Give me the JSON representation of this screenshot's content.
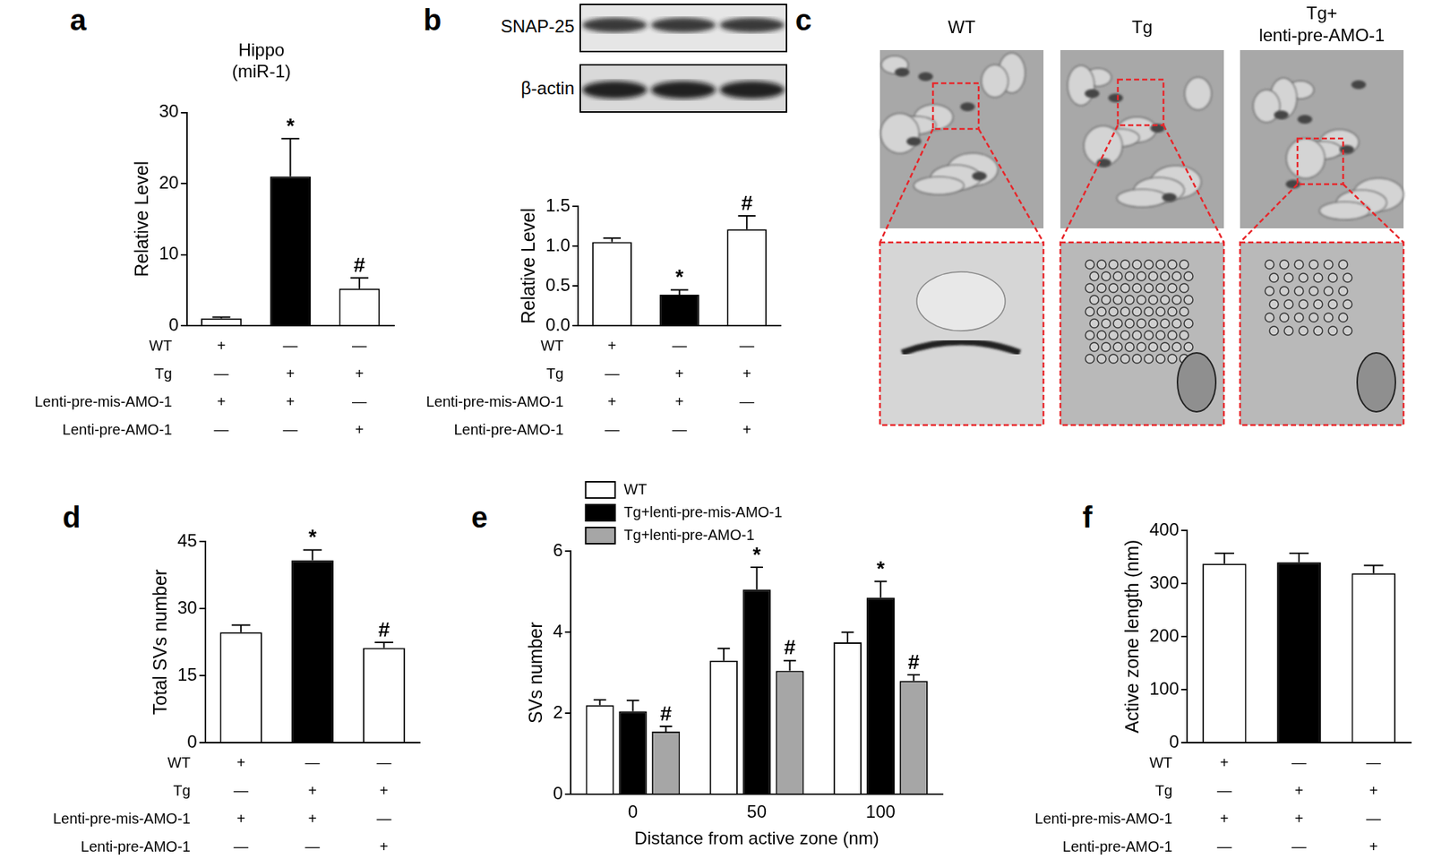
{
  "chart_data": [
    {
      "panel": "a",
      "type": "bar",
      "title": [
        "Hippo",
        "(miR-1)"
      ],
      "ylabel": "Relative Level",
      "values": [
        1.0,
        21.0,
        5.2
      ],
      "errors": [
        0.2,
        5.3,
        1.5
      ],
      "colors": [
        "#ffffff",
        "#000000",
        "#ffffff"
      ],
      "annotations": [
        null,
        "*",
        "#"
      ],
      "ylim": [
        0,
        30
      ],
      "yticks": [
        0,
        10,
        20,
        30
      ],
      "tick_labels": "y",
      "conditions": [
        {
          "label": "WT",
          "marks": [
            "+",
            "—",
            "—"
          ]
        },
        {
          "label": "Tg",
          "marks": [
            "—",
            "+",
            "+"
          ]
        },
        {
          "label": "Lenti-pre-mis-AMO-1",
          "marks": [
            "+",
            "+",
            "—"
          ]
        },
        {
          "label": "Lenti-pre-AMO-1",
          "marks": [
            "—",
            "—",
            "+"
          ]
        }
      ]
    },
    {
      "panel": "b",
      "type": "bar",
      "ylabel": "Relative Level",
      "values": [
        1.05,
        0.39,
        1.21
      ],
      "errors": [
        0.05,
        0.06,
        0.17
      ],
      "colors": [
        "#ffffff",
        "#000000",
        "#ffffff"
      ],
      "annotations": [
        null,
        "*",
        "#"
      ],
      "ylim": [
        0,
        1.5
      ],
      "yticks": [
        {
          "value": 0,
          "label": "0.0"
        },
        {
          "value": 0.5,
          "label": "0.5"
        },
        {
          "value": 1,
          "label": "1.0"
        },
        {
          "value": 1.5,
          "label": "1.5"
        }
      ],
      "tick_labels": "y",
      "conditions": [
        {
          "label": "WT",
          "marks": [
            "+",
            "—",
            "—"
          ]
        },
        {
          "label": "Tg",
          "marks": [
            "—",
            "+",
            "+"
          ]
        },
        {
          "label": "Lenti-pre-mis-AMO-1",
          "marks": [
            "+",
            "+",
            "—"
          ]
        },
        {
          "label": "Lenti-pre-AMO-1",
          "marks": [
            "—",
            "—",
            "+"
          ]
        }
      ]
    },
    {
      "panel": "d",
      "type": "bar",
      "ylabel": "Total SVs number",
      "values": [
        24.7,
        40.8,
        21.2
      ],
      "errors": [
        1.6,
        2.3,
        1.2
      ],
      "colors": [
        "#ffffff",
        "#000000",
        "#ffffff"
      ],
      "annotations": [
        null,
        "*",
        "#"
      ],
      "ylim": [
        0,
        45
      ],
      "yticks": [
        0,
        15,
        30,
        45
      ],
      "tick_labels": "y",
      "conditions": [
        {
          "label": "WT",
          "marks": [
            "+",
            "—",
            "—"
          ]
        },
        {
          "label": "Tg",
          "marks": [
            "—",
            "+",
            "+"
          ]
        },
        {
          "label": "Lenti-pre-mis-AMO-1",
          "marks": [
            "+",
            "+",
            "—"
          ]
        },
        {
          "label": "Lenti-pre-AMO-1",
          "marks": [
            "—",
            "—",
            "+"
          ]
        }
      ]
    },
    {
      "panel": "e",
      "type": "bar",
      "xlabel": "Distance from active zone (nm)",
      "ylabel": "SVs number",
      "categories": [
        "0",
        "50",
        "100"
      ],
      "legend": "top",
      "series": [
        {
          "name": "WT",
          "color": "#ffffff",
          "values": [
            2.2,
            3.3,
            3.75
          ],
          "errors": [
            0.13,
            0.3,
            0.25
          ],
          "annotations": [
            null,
            null,
            null
          ]
        },
        {
          "name": "Tg+lenti-pre-mis-AMO-1",
          "color": "#000000",
          "values": [
            2.05,
            5.05,
            4.85
          ],
          "errors": [
            0.27,
            0.55,
            0.4
          ],
          "annotations": [
            null,
            "*",
            "*"
          ]
        },
        {
          "name": "Tg+lenti-pre-AMO-1",
          "color": "#a6a6a6",
          "values": [
            1.55,
            3.05,
            2.8
          ],
          "errors": [
            0.13,
            0.25,
            0.15
          ],
          "annotations": [
            "#",
            "#",
            "#"
          ]
        }
      ],
      "ylim": [
        0,
        6
      ],
      "yticks": [
        0,
        2,
        4,
        6
      ]
    },
    {
      "panel": "f",
      "type": "bar",
      "ylabel": "Active zone length (nm)",
      "values": [
        337,
        340,
        319
      ],
      "errors": [
        20,
        17,
        15
      ],
      "colors": [
        "#ffffff",
        "#000000",
        "#ffffff"
      ],
      "ylim": [
        0,
        400
      ],
      "yticks": [
        0,
        100,
        200,
        300,
        400
      ],
      "tick_labels": "y",
      "conditions": [
        {
          "label": "WT",
          "marks": [
            "+",
            "—",
            "—"
          ]
        },
        {
          "label": "Tg",
          "marks": [
            "—",
            "+",
            "+"
          ]
        },
        {
          "label": "Lenti-pre-mis-AMO-1",
          "marks": [
            "+",
            "+",
            "—"
          ]
        },
        {
          "label": "Lenti-pre-AMO-1",
          "marks": [
            "—",
            "—",
            "+"
          ]
        }
      ]
    }
  ],
  "blot": {
    "panel": "b",
    "lanes": 3,
    "labels": [
      "SNAP-25",
      "β-actin"
    ]
  },
  "micrographs": {
    "panel": "c",
    "titles": [
      [
        "WT"
      ],
      [
        "Tg"
      ],
      [
        "Tg+",
        "lenti-pre-AMO-1"
      ]
    ]
  }
}
